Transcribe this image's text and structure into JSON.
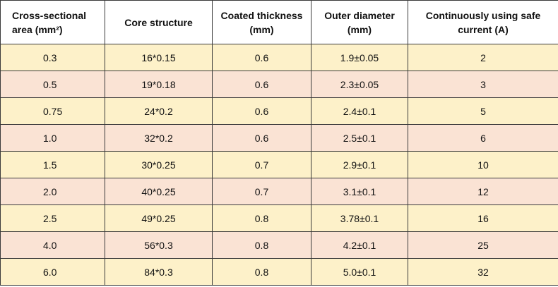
{
  "table": {
    "header": [
      "Cross-sectional area (mm²)",
      "Core structure",
      "Coated thickness (mm)",
      "Outer diameter (mm)",
      "Continuously using safe current (A)"
    ],
    "rows": [
      [
        "0.3",
        "16*0.15",
        "0.6",
        "1.9±0.05",
        "2"
      ],
      [
        "0.5",
        "19*0.18",
        "0.6",
        "2.3±0.05",
        "3"
      ],
      [
        "0.75",
        "24*0.2",
        "0.6",
        "2.4±0.1",
        "5"
      ],
      [
        "1.0",
        "32*0.2",
        "0.6",
        "2.5±0.1",
        "6"
      ],
      [
        "1.5",
        "30*0.25",
        "0.7",
        "2.9±0.1",
        "10"
      ],
      [
        "2.0",
        "40*0.25",
        "0.7",
        "3.1±0.1",
        "12"
      ],
      [
        "2.5",
        "49*0.25",
        "0.8",
        "3.78±0.1",
        "16"
      ],
      [
        "4.0",
        "56*0.3",
        "0.8",
        "4.2±0.1",
        "25"
      ],
      [
        "6.0",
        "84*0.3",
        "0.8",
        "5.0±0.1",
        "32"
      ]
    ]
  }
}
